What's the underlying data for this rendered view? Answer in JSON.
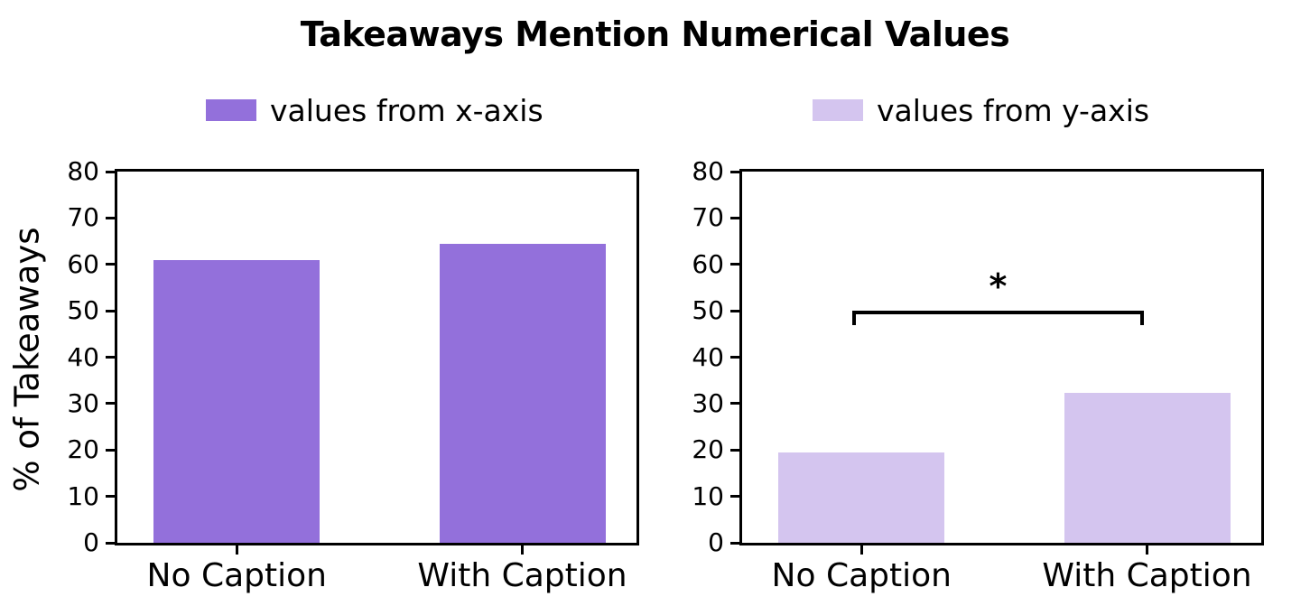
{
  "title": "Takeaways Mention Numerical Values",
  "chart_data": [
    {
      "type": "bar",
      "panel": "left",
      "legend": "values from x-axis",
      "bar_color": "#9370db",
      "categories": [
        "No Caption",
        "With Caption"
      ],
      "values": [
        61,
        64.5
      ],
      "ylabel": "% of Takeaways",
      "ylim": [
        0,
        80
      ],
      "ytick_step": 10,
      "grid": false
    },
    {
      "type": "bar",
      "panel": "right",
      "legend": "values from y-axis",
      "bar_color": "#d4c5ef",
      "categories": [
        "No Caption",
        "With Caption"
      ],
      "values": [
        19.5,
        32.3
      ],
      "ylabel": "",
      "ylim": [
        0,
        80
      ],
      "ytick_step": 10,
      "grid": false,
      "annotation": {
        "label": "*",
        "type": "significance-bracket",
        "bracket_y": 50,
        "bracket_leg_to": 47,
        "between": [
          "No Caption",
          "With Caption"
        ]
      }
    }
  ],
  "axis_color": "#000000",
  "background_color": "#ffffff"
}
